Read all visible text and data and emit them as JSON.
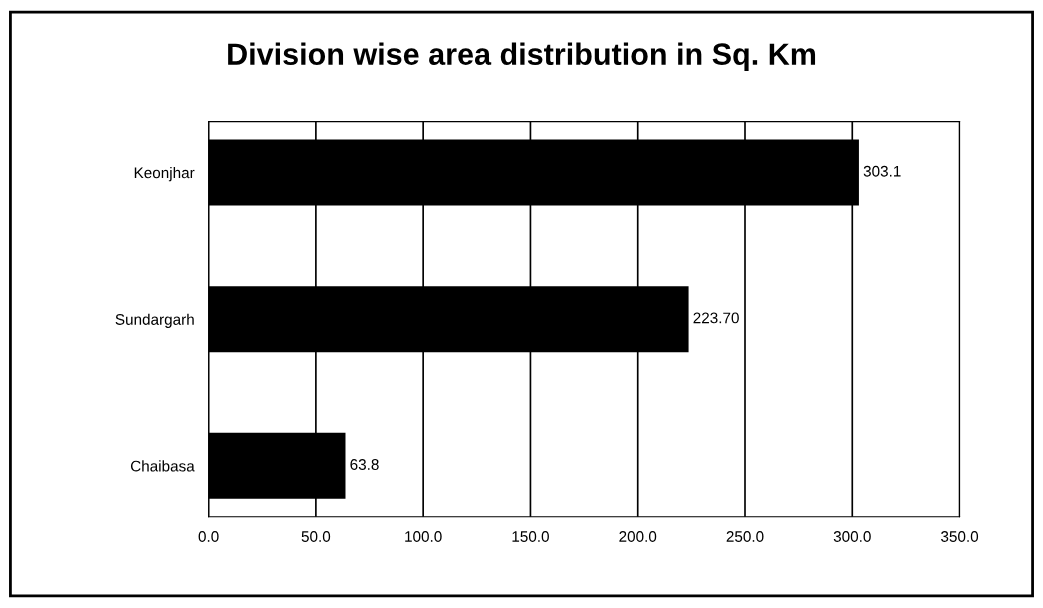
{
  "chart_data": {
    "type": "bar",
    "orientation": "horizontal",
    "title": "Division wise area distribution in Sq. Km",
    "categories": [
      "Keonjhar",
      "Sundargarh",
      "Chaibasa"
    ],
    "values": [
      303.1,
      223.7,
      63.8
    ],
    "value_labels": [
      "303.1",
      "223.70",
      "63.8"
    ],
    "color": "#000000",
    "xlim": [
      0,
      350
    ],
    "xticks": [
      {
        "value": 0,
        "label": "0.0"
      },
      {
        "value": 50,
        "label": "50.0"
      },
      {
        "value": 100,
        "label": "100.0"
      },
      {
        "value": 150,
        "label": "150.0"
      },
      {
        "value": 200,
        "label": "200.0"
      },
      {
        "value": 250,
        "label": "250.0"
      },
      {
        "value": 300,
        "label": "300.0"
      },
      {
        "value": 350,
        "label": "350.0"
      }
    ],
    "grid": "x"
  }
}
